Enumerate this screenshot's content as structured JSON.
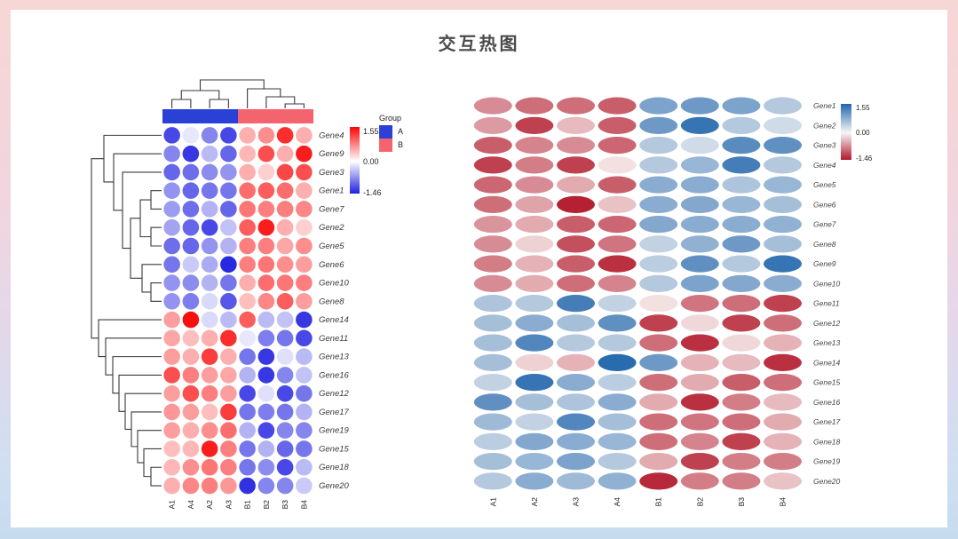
{
  "title": "交互热图",
  "legend_left": {
    "max": "1.55",
    "mid": "0.00",
    "min": "-1.46"
  },
  "group_legend": {
    "title": "Group",
    "a_label": "A",
    "b_label": "B",
    "a_color": "#2a41d8",
    "b_color": "#f4646e"
  },
  "legend_right": {
    "max": "1.55",
    "mid": "0.00",
    "min": "-1.46"
  },
  "chart_data": {
    "type": "heatmap",
    "title": "交互热图",
    "rows": [
      "Gene1",
      "Gene2",
      "Gene3",
      "Gene4",
      "Gene5",
      "Gene6",
      "Gene7",
      "Gene8",
      "Gene9",
      "Gene10",
      "Gene11",
      "Gene12",
      "Gene13",
      "Gene14",
      "Gene15",
      "Gene16",
      "Gene17",
      "Gene18",
      "Gene19",
      "Gene20"
    ],
    "columns": [
      "A1",
      "A2",
      "A3",
      "A4",
      "B1",
      "B2",
      "B3",
      "B4"
    ],
    "values": [
      [
        -0.7,
        -0.9,
        -0.9,
        -1.0,
        0.9,
        1.0,
        0.9,
        0.5
      ],
      [
        -0.6,
        -1.2,
        -0.4,
        -1.0,
        1.0,
        1.4,
        0.5,
        0.3
      ],
      [
        -1.0,
        -0.75,
        -0.7,
        -0.95,
        0.5,
        0.3,
        1.15,
        1.1
      ],
      [
        -1.2,
        -0.8,
        -1.2,
        -0.15,
        0.5,
        0.7,
        1.3,
        0.5
      ],
      [
        -0.95,
        -0.7,
        -0.5,
        -1.0,
        0.8,
        0.8,
        0.55,
        0.7
      ],
      [
        -0.9,
        -0.55,
        -1.4,
        -0.35,
        0.8,
        0.85,
        0.7,
        0.6
      ],
      [
        -0.65,
        -0.5,
        -1.0,
        -0.95,
        0.85,
        0.8,
        0.8,
        0.75
      ],
      [
        -0.7,
        -0.25,
        -1.1,
        -0.85,
        0.4,
        0.75,
        1.0,
        0.6
      ],
      [
        -0.8,
        -0.45,
        -1.0,
        -1.3,
        0.45,
        1.1,
        0.5,
        1.4
      ],
      [
        -0.7,
        -0.5,
        -0.9,
        -0.75,
        0.5,
        0.9,
        0.85,
        0.8
      ],
      [
        0.55,
        0.5,
        1.3,
        0.4,
        -0.15,
        -0.85,
        -0.9,
        -1.2
      ],
      [
        0.6,
        0.8,
        0.6,
        1.1,
        -1.2,
        -0.2,
        -1.2,
        -0.9
      ],
      [
        0.6,
        1.2,
        0.5,
        0.5,
        -0.9,
        -1.3,
        -0.2,
        -0.45
      ],
      [
        0.6,
        -0.25,
        -0.45,
        1.5,
        1.0,
        -0.45,
        -0.4,
        -1.3
      ],
      [
        0.4,
        1.4,
        0.8,
        0.45,
        -0.9,
        -0.5,
        -1.0,
        -0.9
      ],
      [
        1.1,
        0.6,
        0.55,
        0.8,
        -0.5,
        -1.3,
        -0.8,
        -0.4
      ],
      [
        0.65,
        0.4,
        1.2,
        0.6,
        -0.9,
        -0.85,
        -0.9,
        -0.5
      ],
      [
        0.45,
        0.85,
        0.8,
        0.7,
        -0.9,
        -0.75,
        -1.2,
        -0.45
      ],
      [
        0.6,
        0.7,
        0.9,
        0.5,
        -0.5,
        -1.2,
        -0.8,
        -0.8
      ],
      [
        0.5,
        0.8,
        0.65,
        0.75,
        -1.35,
        -0.8,
        -0.8,
        -0.35
      ]
    ],
    "value_range": [
      -1.46,
      1.55
    ],
    "panels": [
      {
        "name": "clustered-circle-heatmap",
        "shape": "circle",
        "clustered": true,
        "row_order": [
          "Gene4",
          "Gene9",
          "Gene3",
          "Gene1",
          "Gene7",
          "Gene2",
          "Gene5",
          "Gene6",
          "Gene10",
          "Gene8",
          "Gene14",
          "Gene11",
          "Gene13",
          "Gene16",
          "Gene12",
          "Gene17",
          "Gene19",
          "Gene15",
          "Gene18",
          "Gene20"
        ],
        "col_order": [
          "A1",
          "A4",
          "A2",
          "A3",
          "B1",
          "B2",
          "B3",
          "B4"
        ],
        "palette": {
          "negative": "#2020e0",
          "zero": "#ffffff",
          "positive": "#fa0505"
        },
        "column_annotation": {
          "title": "Group",
          "groups": [
            {
              "label": "A",
              "color": "#2a41d8",
              "columns": [
                "A1",
                "A4",
                "A2",
                "A3"
              ]
            },
            {
              "label": "B",
              "color": "#f4646e",
              "columns": [
                "B1",
                "B2",
                "B3",
                "B4"
              ]
            }
          ]
        },
        "legend_ticks": [
          "1.55",
          "0.00",
          "-1.46"
        ]
      },
      {
        "name": "ellipse-heatmap",
        "shape": "ellipse",
        "clustered": false,
        "row_order": [
          "Gene1",
          "Gene2",
          "Gene3",
          "Gene4",
          "Gene5",
          "Gene6",
          "Gene7",
          "Gene8",
          "Gene9",
          "Gene10",
          "Gene11",
          "Gene12",
          "Gene13",
          "Gene14",
          "Gene15",
          "Gene16",
          "Gene17",
          "Gene18",
          "Gene19",
          "Gene20"
        ],
        "col_order": [
          "A1",
          "A2",
          "A3",
          "A4",
          "B1",
          "B2",
          "B3",
          "B4"
        ],
        "palette": {
          "negative": "#b2182b",
          "zero": "#faf7f6",
          "positive": "#2166ac"
        },
        "legend_ticks": [
          "1.55",
          "0.00",
          "-1.46"
        ]
      }
    ]
  }
}
